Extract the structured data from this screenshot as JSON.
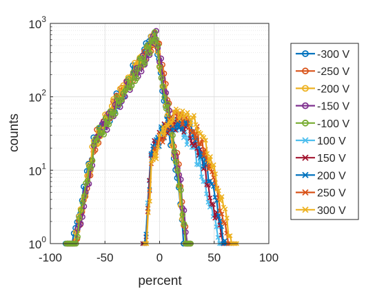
{
  "chart_data": {
    "type": "line",
    "xlabel": "percent",
    "ylabel": "counts",
    "xlim": [
      -100,
      100
    ],
    "ylim": [
      1,
      1000
    ],
    "yscale": "log",
    "grid": true,
    "minor_grid": true,
    "xticks": [
      "-100",
      "-50",
      "0",
      "50",
      "100"
    ],
    "yticks": [
      {
        "base": "10",
        "exp": "0"
      },
      {
        "base": "10",
        "exp": "1"
      },
      {
        "base": "10",
        "exp": "2"
      },
      {
        "base": "10",
        "exp": "3"
      }
    ],
    "legend_position": "right",
    "series": [
      {
        "name": "-300 V",
        "marker": "o",
        "color": "#0072BD",
        "peak": 650,
        "center": -5,
        "shift": 0.0
      },
      {
        "name": "-250 V",
        "marker": "o",
        "color": "#D95319",
        "peak": 700,
        "center": -3,
        "shift": 0.4
      },
      {
        "name": "-200 V",
        "marker": "o",
        "color": "#EDB120",
        "peak": 680,
        "center": -4,
        "shift": 0.9
      },
      {
        "name": "-150 V",
        "marker": "o",
        "color": "#7E2F8E",
        "peak": 640,
        "center": -3,
        "shift": 1.3
      },
      {
        "name": "-100 V",
        "marker": "o",
        "color": "#77AC30",
        "peak": 620,
        "center": -4,
        "shift": 1.8
      },
      {
        "name": "100 V",
        "marker": "x",
        "color": "#4DBEEE",
        "peak": 40,
        "center": 12,
        "shift": 0.0
      },
      {
        "name": "150 V",
        "marker": "x",
        "color": "#A2142F",
        "peak": 45,
        "center": 14,
        "shift": 0.5
      },
      {
        "name": "200 V",
        "marker": "x",
        "color": "#0072BD",
        "peak": 48,
        "center": 16,
        "shift": 1.0
      },
      {
        "name": "250 V",
        "marker": "x",
        "color": "#D95319",
        "peak": 52,
        "center": 18,
        "shift": 1.5
      },
      {
        "name": "300 V",
        "marker": "x",
        "color": "#EDB120",
        "peak": 58,
        "center": 20,
        "shift": 2.0
      }
    ]
  }
}
